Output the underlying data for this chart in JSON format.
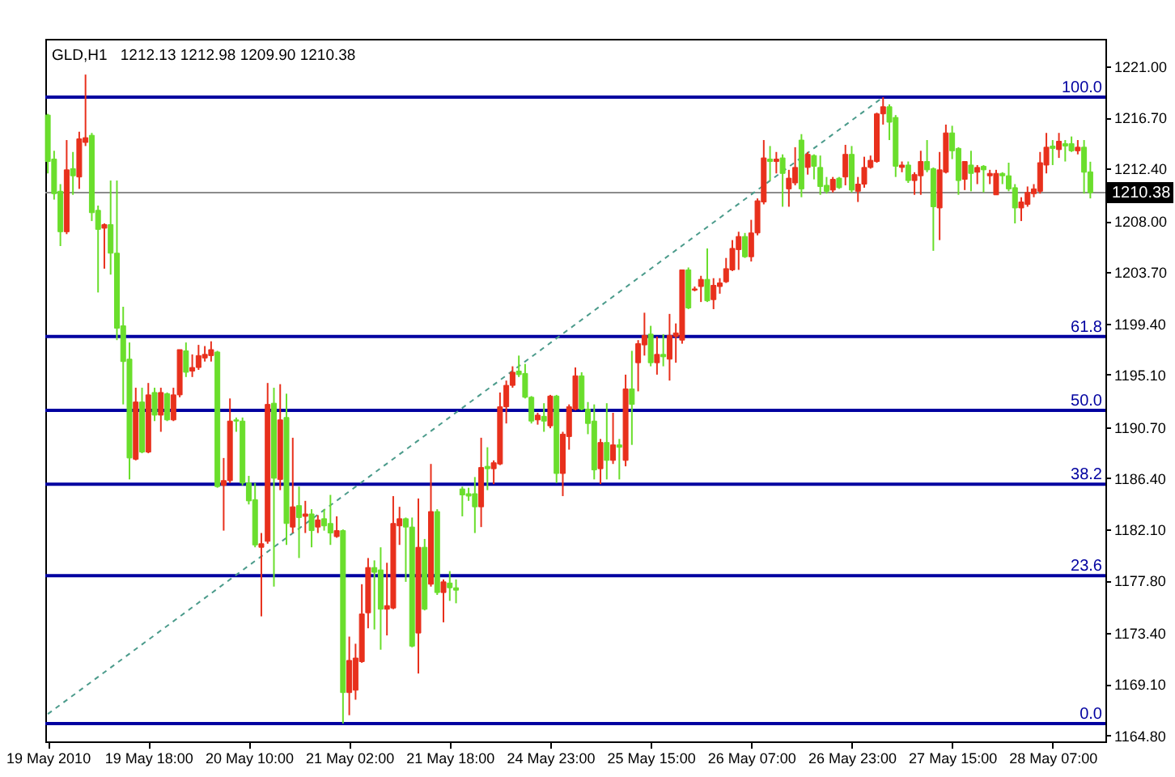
{
  "chart_data": {
    "type": "candlestick",
    "title": "GLD,H1",
    "subtitle": "1212.13 1212.98 1209.90 1210.38",
    "categories": [
      "19 May 2010",
      null,
      null,
      null,
      null,
      null,
      null,
      null,
      null,
      null,
      null,
      null,
      null,
      null,
      null,
      null,
      "19 May 18:00",
      null,
      null,
      null,
      null,
      null,
      null,
      null,
      null,
      null,
      null,
      null,
      null,
      null,
      null,
      null,
      "20 May 10:00",
      null,
      null,
      null,
      null,
      null,
      null,
      null,
      null,
      null,
      null,
      null,
      null,
      null,
      null,
      null,
      "21 May 02:00",
      null,
      null,
      null,
      null,
      null,
      null,
      null,
      null,
      null,
      null,
      null,
      null,
      null,
      null,
      null,
      "21 May 18:00",
      null,
      null,
      null,
      null,
      null,
      null,
      null,
      null,
      null,
      null,
      null,
      null,
      null,
      null,
      null,
      "24 May 23:00",
      null,
      null,
      null,
      null,
      null,
      null,
      null,
      null,
      null,
      null,
      null,
      null,
      null,
      null,
      null,
      "25 May 15:00",
      null,
      null,
      null,
      null,
      null,
      null,
      null,
      null,
      null,
      null,
      null,
      null,
      null,
      null,
      null,
      "26 May 07:00",
      null,
      null,
      null,
      null,
      null,
      null,
      null,
      null,
      null,
      null,
      null,
      null,
      null,
      null,
      null,
      "26 May 23:00",
      null,
      null,
      null,
      null,
      null,
      null,
      null,
      null,
      null,
      null,
      null,
      null,
      null,
      null,
      null,
      "27 May 15:00",
      null,
      null,
      null,
      null,
      null,
      null,
      null,
      null,
      null,
      null,
      null,
      null,
      null,
      null,
      null,
      "28 May 07:00",
      null,
      null,
      null,
      null,
      null,
      null
    ],
    "ohlc": [
      [
        1216.9,
        1217.0,
        1212.0,
        1213.0
      ],
      [
        1213.2,
        1213.9,
        1209.8,
        1210.3
      ],
      [
        1210.5,
        1211.1,
        1205.9,
        1207.1
      ],
      [
        1207.1,
        1214.8,
        1206.9,
        1212.3
      ],
      [
        1212.4,
        1213.8,
        1210.2,
        1211.8
      ],
      [
        1211.7,
        1215.5,
        1210.7,
        1214.9
      ],
      [
        1214.6,
        1220.3,
        1214.3,
        1215.0
      ],
      [
        1215.2,
        1215.4,
        1208.0,
        1208.7
      ],
      [
        1208.9,
        1209.3,
        1202.0,
        1207.3
      ],
      [
        1207.4,
        1207.8,
        1204.0,
        1207.7
      ],
      [
        1207.7,
        1211.4,
        1203.5,
        1205.3
      ],
      [
        1205.3,
        1211.4,
        1198.0,
        1199.0
      ],
      [
        1199.2,
        1200.8,
        1192.6,
        1196.2
      ],
      [
        1196.4,
        1197.8,
        1186.3,
        1188.1
      ],
      [
        1188.0,
        1194.0,
        1187.9,
        1192.8
      ],
      [
        1192.8,
        1194.0,
        1188.5,
        1188.6
      ],
      [
        1188.6,
        1194.4,
        1188.5,
        1193.4
      ],
      [
        1193.6,
        1194.0,
        1191.2,
        1191.7
      ],
      [
        1191.7,
        1194.0,
        1190.3,
        1193.6
      ],
      [
        1193.5,
        1193.6,
        1191.2,
        1191.3
      ],
      [
        1191.3,
        1194.0,
        1191.2,
        1193.4
      ],
      [
        1193.4,
        1197.2,
        1193.2,
        1197.2
      ],
      [
        1197.1,
        1197.8,
        1194.9,
        1195.3
      ],
      [
        1195.4,
        1196.8,
        1194.9,
        1195.7
      ],
      [
        1195.7,
        1197.6,
        1195.5,
        1196.7
      ],
      [
        1196.5,
        1197.5,
        1196.2,
        1196.8
      ],
      [
        1196.7,
        1197.9,
        1196.2,
        1197.2
      ],
      [
        1197.0,
        1197.1,
        1185.6,
        1185.7
      ],
      [
        1185.8,
        1188.1,
        1182.0,
        1186.2
      ],
      [
        1186.2,
        1193.1,
        1186.0,
        1191.2
      ],
      [
        1191.3,
        1191.5,
        1190.3,
        1191.2
      ],
      [
        1191.2,
        1191.5,
        1185.8,
        1186.0
      ],
      [
        1186.0,
        1186.6,
        1184.2,
        1184.5
      ],
      [
        1184.6,
        1186.0,
        1180.6,
        1180.8
      ],
      [
        1180.6,
        1181.8,
        1174.8,
        1180.9
      ],
      [
        1181.1,
        1194.4,
        1180.9,
        1192.6
      ],
      [
        1192.7,
        1194.0,
        1177.3,
        1186.4
      ],
      [
        1186.3,
        1194.3,
        1185.4,
        1191.3
      ],
      [
        1191.5,
        1193.5,
        1180.8,
        1182.6
      ],
      [
        1182.3,
        1189.8,
        1181.8,
        1184.0
      ],
      [
        1184.1,
        1185.7,
        1179.7,
        1183.1
      ],
      [
        1183.2,
        1184.5,
        1181.8,
        1183.4
      ],
      [
        1183.4,
        1183.8,
        1180.6,
        1182.0
      ],
      [
        1182.3,
        1183.3,
        1181.8,
        1182.9
      ],
      [
        1183.0,
        1183.8,
        1182.0,
        1182.4
      ],
      [
        1182.6,
        1185.0,
        1180.8,
        1181.8
      ],
      [
        1181.5,
        1183.2,
        1181.4,
        1182.0
      ],
      [
        1182.0,
        1182.1,
        1165.8,
        1168.4
      ],
      [
        1168.4,
        1173.1,
        1166.5,
        1171.1
      ],
      [
        1168.6,
        1172.5,
        1167.8,
        1171.3
      ],
      [
        1171.0,
        1177.5,
        1170.9,
        1175.0
      ],
      [
        1175.1,
        1179.7,
        1173.8,
        1178.9
      ],
      [
        1178.9,
        1179.5,
        1173.7,
        1178.5
      ],
      [
        1178.7,
        1180.6,
        1172.0,
        1175.4
      ],
      [
        1175.4,
        1179.3,
        1173.2,
        1175.7
      ],
      [
        1175.5,
        1184.9,
        1175.4,
        1182.6
      ],
      [
        1182.4,
        1184.0,
        1180.8,
        1183.0
      ],
      [
        1183.0,
        1183.1,
        1177.7,
        1182.3
      ],
      [
        1182.3,
        1183.1,
        1172.2,
        1172.3
      ],
      [
        1173.4,
        1184.7,
        1170.0,
        1180.6
      ],
      [
        1180.6,
        1181.3,
        1175.3,
        1175.4
      ],
      [
        1177.5,
        1187.6,
        1177.3,
        1183.6
      ],
      [
        1183.6,
        1183.8,
        1176.6,
        1176.8
      ],
      [
        1176.8,
        1177.9,
        1174.3,
        1177.7
      ],
      [
        1177.6,
        1178.6,
        1176.1,
        1177.2
      ],
      [
        1177.2,
        1177.9,
        1175.9,
        1177.0
      ],
      [
        1185.5,
        1185.7,
        1183.2,
        1185.0
      ],
      [
        1185.1,
        1185.6,
        1184.5,
        1184.9
      ],
      [
        1185.1,
        1186.5,
        1181.8,
        1184.0
      ],
      [
        1184.0,
        1189.8,
        1182.3,
        1187.3
      ],
      [
        1187.4,
        1189.0,
        1185.4,
        1187.2
      ],
      [
        1187.2,
        1187.9,
        1185.9,
        1187.7
      ],
      [
        1187.6,
        1193.6,
        1187.5,
        1192.4
      ],
      [
        1192.4,
        1194.6,
        1191.0,
        1194.2
      ],
      [
        1194.2,
        1195.8,
        1194.0,
        1195.3
      ],
      [
        1195.4,
        1196.7,
        1194.9,
        1195.1
      ],
      [
        1195.2,
        1196.0,
        1193.1,
        1193.2
      ],
      [
        1193.2,
        1193.3,
        1191.0,
        1191.2
      ],
      [
        1191.3,
        1191.9,
        1190.9,
        1191.7
      ],
      [
        1191.6,
        1192.7,
        1190.3,
        1191.2
      ],
      [
        1190.8,
        1193.4,
        1190.6,
        1193.3
      ],
      [
        1193.3,
        1193.4,
        1186.0,
        1186.8
      ],
      [
        1186.8,
        1190.3,
        1184.9,
        1190.1
      ],
      [
        1189.9,
        1192.6,
        1188.8,
        1192.4
      ],
      [
        1192.2,
        1195.7,
        1192.1,
        1195.0
      ],
      [
        1195.0,
        1195.3,
        1192.1,
        1192.2
      ],
      [
        1192.2,
        1192.8,
        1190.1,
        1191.0
      ],
      [
        1191.2,
        1192.6,
        1186.3,
        1187.1
      ],
      [
        1187.2,
        1189.7,
        1185.9,
        1189.4
      ],
      [
        1189.4,
        1192.7,
        1186.3,
        1187.9
      ],
      [
        1187.9,
        1191.9,
        1187.6,
        1189.2
      ],
      [
        1189.2,
        1189.7,
        1186.3,
        1189.0
      ],
      [
        1187.9,
        1195.1,
        1187.4,
        1193.9
      ],
      [
        1193.9,
        1197.1,
        1189.2,
        1192.6
      ],
      [
        1196.1,
        1198.0,
        1193.7,
        1197.7
      ],
      [
        1197.6,
        1200.3,
        1196.7,
        1198.4
      ],
      [
        1198.5,
        1199.2,
        1195.8,
        1196.1
      ],
      [
        1196.1,
        1198.3,
        1195.1,
        1196.8
      ],
      [
        1196.8,
        1198.5,
        1195.8,
        1196.6
      ],
      [
        1196.4,
        1200.2,
        1194.6,
        1198.4
      ],
      [
        1198.3,
        1199.4,
        1196.1,
        1198.6
      ],
      [
        1198.0,
        1203.9,
        1197.7,
        1203.9
      ],
      [
        1203.9,
        1204.1,
        1200.6,
        1200.7
      ],
      [
        1202.2,
        1202.5,
        1202.1,
        1202.3
      ],
      [
        1202.5,
        1203.4,
        1201.2,
        1203.1
      ],
      [
        1203.1,
        1205.7,
        1201.2,
        1201.3
      ],
      [
        1201.4,
        1203.2,
        1200.6,
        1202.6
      ],
      [
        1202.5,
        1203.2,
        1201.9,
        1202.8
      ],
      [
        1202.9,
        1204.9,
        1202.8,
        1204.0
      ],
      [
        1203.9,
        1206.4,
        1203.8,
        1205.7
      ],
      [
        1205.6,
        1207.1,
        1203.9,
        1206.7
      ],
      [
        1206.7,
        1207.0,
        1204.9,
        1205.0
      ],
      [
        1205.0,
        1208.1,
        1204.6,
        1207.0
      ],
      [
        1207.0,
        1209.9,
        1206.8,
        1209.7
      ],
      [
        1209.6,
        1214.8,
        1209.4,
        1213.3
      ],
      [
        1213.2,
        1214.3,
        1211.4,
        1213.0
      ],
      [
        1213.0,
        1213.8,
        1212.0,
        1213.2
      ],
      [
        1213.3,
        1213.6,
        1209.2,
        1212.0
      ],
      [
        1210.7,
        1212.3,
        1209.2,
        1211.6
      ],
      [
        1211.2,
        1214.2,
        1211.0,
        1212.5
      ],
      [
        1214.8,
        1215.3,
        1210.0,
        1210.7
      ],
      [
        1212.5,
        1213.8,
        1211.9,
        1213.6
      ],
      [
        1213.5,
        1213.6,
        1211.5,
        1212.6
      ],
      [
        1212.5,
        1213.5,
        1210.2,
        1210.9
      ],
      [
        1211.0,
        1211.7,
        1210.3,
        1210.5
      ],
      [
        1210.6,
        1211.7,
        1210.4,
        1211.5
      ],
      [
        1211.6,
        1211.7,
        1210.7,
        1210.8
      ],
      [
        1211.7,
        1214.4,
        1211.0,
        1213.6
      ],
      [
        1213.6,
        1214.3,
        1210.4,
        1210.6
      ],
      [
        1210.5,
        1211.7,
        1209.6,
        1211.1
      ],
      [
        1211.1,
        1213.4,
        1210.8,
        1212.5
      ],
      [
        1212.5,
        1213.5,
        1212.4,
        1213.1
      ],
      [
        1213.0,
        1217.1,
        1212.9,
        1217.0
      ],
      [
        1217.0,
        1218.4,
        1216.1,
        1217.6
      ],
      [
        1217.6,
        1217.8,
        1214.8,
        1216.3
      ],
      [
        1216.7,
        1216.9,
        1211.7,
        1212.6
      ],
      [
        1212.5,
        1213.0,
        1212.1,
        1212.7
      ],
      [
        1212.7,
        1213.0,
        1211.2,
        1211.4
      ],
      [
        1211.4,
        1212.1,
        1210.2,
        1211.9
      ],
      [
        1211.8,
        1213.9,
        1210.2,
        1213.0
      ],
      [
        1213.0,
        1214.8,
        1212.1,
        1212.3
      ],
      [
        1212.4,
        1212.5,
        1205.5,
        1209.2
      ],
      [
        1209.1,
        1213.8,
        1206.4,
        1212.3
      ],
      [
        1212.1,
        1216.1,
        1212.0,
        1215.4
      ],
      [
        1215.4,
        1216.0,
        1213.2,
        1213.9
      ],
      [
        1214.1,
        1214.2,
        1210.2,
        1211.4
      ],
      [
        1211.5,
        1213.0,
        1210.6,
        1213.0
      ],
      [
        1212.7,
        1213.9,
        1210.5,
        1212.0
      ],
      [
        1212.1,
        1212.7,
        1211.1,
        1212.5
      ],
      [
        1212.6,
        1212.7,
        1210.4,
        1212.3
      ],
      [
        1211.8,
        1212.3,
        1211.1,
        1212.0
      ],
      [
        1210.2,
        1212.3,
        1210.2,
        1212.0
      ],
      [
        1212.0,
        1212.1,
        1211.1,
        1211.8
      ],
      [
        1211.8,
        1212.9,
        1210.5,
        1210.7
      ],
      [
        1210.8,
        1211.1,
        1207.8,
        1209.1
      ],
      [
        1209.1,
        1210.0,
        1208.0,
        1209.6
      ],
      [
        1209.4,
        1210.9,
        1209.2,
        1210.4
      ],
      [
        1210.3,
        1211.1,
        1210.0,
        1210.7
      ],
      [
        1210.5,
        1213.8,
        1210.3,
        1212.9
      ],
      [
        1212.7,
        1215.4,
        1212.0,
        1214.2
      ],
      [
        1214.3,
        1214.8,
        1212.7,
        1214.1
      ],
      [
        1214.0,
        1215.4,
        1213.3,
        1214.7
      ],
      [
        1214.5,
        1214.8,
        1213.0,
        1214.3
      ],
      [
        1214.5,
        1215.1,
        1213.8,
        1213.9
      ],
      [
        1213.9,
        1214.8,
        1213.6,
        1214.2
      ],
      [
        1214.2,
        1214.8,
        1210.3,
        1212.1
      ],
      [
        1212.13,
        1212.98,
        1209.9,
        1210.38
      ]
    ],
    "colors": [
      "#6ade2c",
      "#6ade2c",
      "#6ade2c",
      "#e8301c",
      "#6ade2c",
      "#e8301c",
      "#e8301c",
      "#6ade2c",
      "#6ade2c",
      "#e8301c",
      "#6ade2c",
      "#6ade2c",
      "#6ade2c",
      "#6ade2c",
      "#e8301c",
      "#6ade2c",
      "#e8301c",
      "#6ade2c",
      "#e8301c",
      "#6ade2c",
      "#e8301c",
      "#e8301c",
      "#6ade2c",
      "#e8301c",
      "#e8301c",
      "#e8301c",
      "#e8301c",
      "#6ade2c",
      "#e8301c",
      "#e8301c",
      "#6ade2c",
      "#6ade2c",
      "#6ade2c",
      "#6ade2c",
      "#e8301c",
      "#e8301c",
      "#6ade2c",
      "#e8301c",
      "#6ade2c",
      "#e8301c",
      "#6ade2c",
      "#e8301c",
      "#6ade2c",
      "#e8301c",
      "#6ade2c",
      "#6ade2c",
      "#e8301c",
      "#6ade2c",
      "#e8301c",
      "#e8301c",
      "#e8301c",
      "#e8301c",
      "#6ade2c",
      "#6ade2c",
      "#e8301c",
      "#e8301c",
      "#e8301c",
      "#6ade2c",
      "#6ade2c",
      "#e8301c",
      "#6ade2c",
      "#e8301c",
      "#6ade2c",
      "#e8301c",
      "#6ade2c",
      "#6ade2c",
      "#6ade2c",
      "#6ade2c",
      "#6ade2c",
      "#e8301c",
      "#6ade2c",
      "#e8301c",
      "#e8301c",
      "#e8301c",
      "#e8301c",
      "#6ade2c",
      "#6ade2c",
      "#6ade2c",
      "#e8301c",
      "#6ade2c",
      "#e8301c",
      "#6ade2c",
      "#e8301c",
      "#e8301c",
      "#e8301c",
      "#6ade2c",
      "#6ade2c",
      "#6ade2c",
      "#e8301c",
      "#6ade2c",
      "#e8301c",
      "#6ade2c",
      "#e8301c",
      "#6ade2c",
      "#e8301c",
      "#e8301c",
      "#6ade2c",
      "#e8301c",
      "#6ade2c",
      "#e8301c",
      "#e8301c",
      "#e8301c",
      "#6ade2c",
      "#e8301c",
      "#e8301c",
      "#6ade2c",
      "#e8301c",
      "#e8301c",
      "#e8301c",
      "#e8301c",
      "#e8301c",
      "#6ade2c",
      "#e8301c",
      "#e8301c",
      "#e8301c",
      "#6ade2c",
      "#e8301c",
      "#6ade2c",
      "#e8301c",
      "#e8301c",
      "#6ade2c",
      "#e8301c",
      "#6ade2c",
      "#6ade2c",
      "#6ade2c",
      "#e8301c",
      "#6ade2c",
      "#e8301c",
      "#6ade2c",
      "#e8301c",
      "#e8301c",
      "#e8301c",
      "#e8301c",
      "#e8301c",
      "#6ade2c",
      "#6ade2c",
      "#e8301c",
      "#6ade2c",
      "#e8301c",
      "#e8301c",
      "#6ade2c",
      "#6ade2c",
      "#e8301c",
      "#e8301c",
      "#6ade2c",
      "#6ade2c",
      "#e8301c",
      "#6ade2c",
      "#e8301c",
      "#6ade2c",
      "#e8301c",
      "#e8301c",
      "#6ade2c",
      "#6ade2c",
      "#6ade2c",
      "#e8301c",
      "#e8301c",
      "#e8301c",
      "#e8301c",
      "#e8301c",
      "#6ade2c",
      "#e8301c",
      "#6ade2c",
      "#6ade2c",
      "#e8301c",
      "#6ade2c",
      "#6ade2c"
    ],
    "series": [
      {
        "type": "line",
        "color": "#4b9b8b",
        "line_style": "dashed",
        "values": [
          1166.6,
          null,
          null,
          null,
          null,
          null,
          null,
          null,
          null,
          null,
          null,
          null,
          null,
          null,
          null,
          null,
          null,
          null,
          null,
          null,
          null,
          null,
          null,
          null,
          null,
          null,
          null,
          null,
          null,
          null,
          null,
          null,
          null,
          null,
          null,
          null,
          null,
          null,
          null,
          null,
          null,
          null,
          null,
          null,
          null,
          null,
          null,
          null,
          null,
          null,
          null,
          null,
          null,
          null,
          null,
          null,
          null,
          null,
          null,
          null,
          null,
          null,
          null,
          null,
          null,
          null,
          null,
          null,
          null,
          null,
          null,
          null,
          null,
          null,
          null,
          null,
          null,
          null,
          null,
          null,
          null,
          null,
          null,
          null,
          null,
          null,
          null,
          null,
          null,
          null,
          null,
          null,
          null,
          null,
          null,
          null,
          null,
          null,
          null,
          null,
          null,
          null,
          null,
          null,
          null,
          null,
          null,
          null,
          null,
          null,
          null,
          null,
          null,
          null,
          null,
          null,
          null,
          null,
          null,
          null,
          null,
          null,
          null,
          null,
          null,
          null,
          null,
          null,
          null,
          null,
          null,
          null,
          null,
          1218.4,
          null,
          null,
          null,
          null,
          null,
          null,
          null,
          null,
          null,
          null,
          null,
          null,
          null,
          null,
          null,
          null,
          null,
          null,
          null,
          null,
          null,
          null,
          null,
          null,
          null,
          null,
          null,
          null,
          null,
          null,
          null,
          null,
          null
        ]
      }
    ],
    "ylim": [
      1164.3,
      1223.3
    ],
    "yticks": [
      {
        "value": 1221.0,
        "label": "1221.00"
      },
      {
        "value": 1216.7,
        "label": "1216.70"
      },
      {
        "value": 1212.4,
        "label": "1212.40"
      },
      {
        "value": 1208.0,
        "label": "1208.00"
      },
      {
        "value": 1203.7,
        "label": "1203.70"
      },
      {
        "value": 1199.4,
        "label": "1199.40"
      },
      {
        "value": 1195.1,
        "label": "1195.10"
      },
      {
        "value": 1190.7,
        "label": "1190.70"
      },
      {
        "value": 1186.4,
        "label": "1186.40"
      },
      {
        "value": 1182.1,
        "label": "1182.10"
      },
      {
        "value": 1177.8,
        "label": "1177.80"
      },
      {
        "value": 1173.4,
        "label": "1173.40"
      },
      {
        "value": 1169.1,
        "label": "1169.10"
      },
      {
        "value": 1164.8,
        "label": "1164.80"
      }
    ],
    "y2lim": [
      -2.85,
      109.32
    ],
    "ref_lines": [
      {
        "axis": "y2",
        "value": 100,
        "label": "100.0",
        "color": "#0000a0"
      },
      {
        "axis": "y2",
        "value": 61.8,
        "label": "61.8",
        "color": "#0000a0"
      },
      {
        "axis": "y2",
        "value": 50,
        "label": "50.0",
        "color": "#0000a0"
      },
      {
        "axis": "y2",
        "value": 38.2,
        "label": "38.2",
        "color": "#0000a0"
      },
      {
        "axis": "y2",
        "value": 23.6,
        "label": "23.6",
        "color": "#0000a0"
      },
      {
        "axis": "y2",
        "value": 0,
        "label": "0.0",
        "color": "#0000a0"
      },
      {
        "axis": "y",
        "value": 1210.38,
        "label": "1210.38",
        "color": "#8c8c8c"
      }
    ]
  }
}
